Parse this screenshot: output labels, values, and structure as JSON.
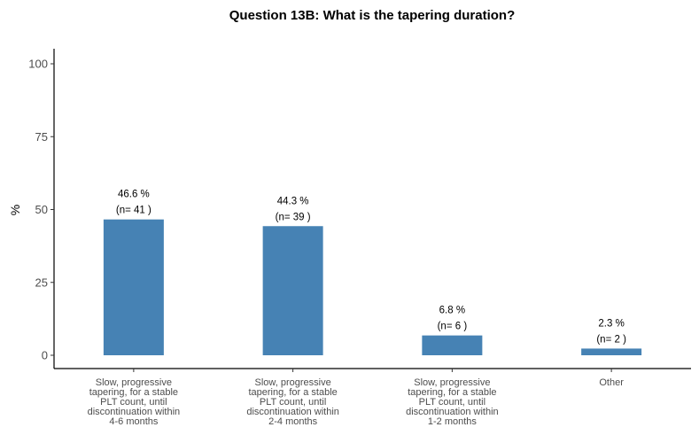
{
  "chart_data": {
    "type": "bar",
    "title": "Question 13B: What is the tapering duration?",
    "xlabel": "",
    "ylabel": "%",
    "ylim": [
      0,
      105
    ],
    "yticks": [
      0,
      25,
      50,
      75,
      100
    ],
    "bar_color": "#4682b4",
    "grid": false,
    "categories": [
      [
        "Slow, progressive",
        "tapering, for a stable",
        "PLT count, until",
        "discontinuation within",
        "4-6 months"
      ],
      [
        "Slow, progressive",
        "tapering, for a stable",
        "PLT count, until",
        "discontinuation within",
        "2-4 months"
      ],
      [
        "Slow, progressive",
        "tapering, for a stable",
        "PLT count, until",
        "discontinuation within",
        "1-2 months"
      ],
      [
        "Other"
      ]
    ],
    "values": [
      46.6,
      44.3,
      6.8,
      2.3
    ],
    "value_labels": [
      "46.6 %",
      "44.3 %",
      "6.8 %",
      "2.3 %"
    ],
    "count_labels": [
      "(n= 41 )",
      "(n= 39 )",
      "(n= 6 )",
      "(n= 2 )"
    ]
  }
}
